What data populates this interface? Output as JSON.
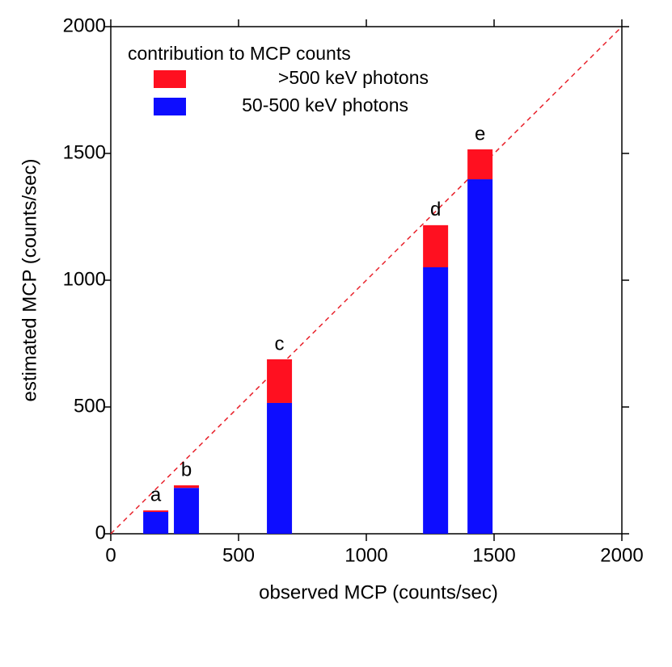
{
  "chart_data": {
    "type": "bar",
    "stacked": true,
    "xlabel": "observed MCP (counts/sec)",
    "ylabel": "estimated MCP (counts/sec)",
    "legend_title": "contribution to MCP counts",
    "x": [
      176,
      296,
      660,
      1271,
      1445
    ],
    "bar_labels": [
      "a",
      "b",
      "c",
      "d",
      "e"
    ],
    "series": [
      {
        "name": "50-500 keV photons",
        "color": "#0d0dff",
        "values": [
          86,
          181,
          516,
          1051,
          1398
        ]
      },
      {
        "name": ">500 keV photons",
        "color": "#ff1020",
        "values": [
          6,
          10,
          172,
          166,
          118
        ]
      }
    ],
    "diagonal": {
      "x": [
        0,
        2000
      ],
      "y": [
        0,
        2000
      ],
      "color": "#e8202a"
    },
    "xlim": [
      0,
      2000
    ],
    "xticks": [
      0,
      500,
      1000,
      1500,
      2000
    ],
    "ylim": [
      0,
      2000
    ],
    "yticks": [
      0,
      500,
      1000,
      1500,
      2000
    ]
  }
}
